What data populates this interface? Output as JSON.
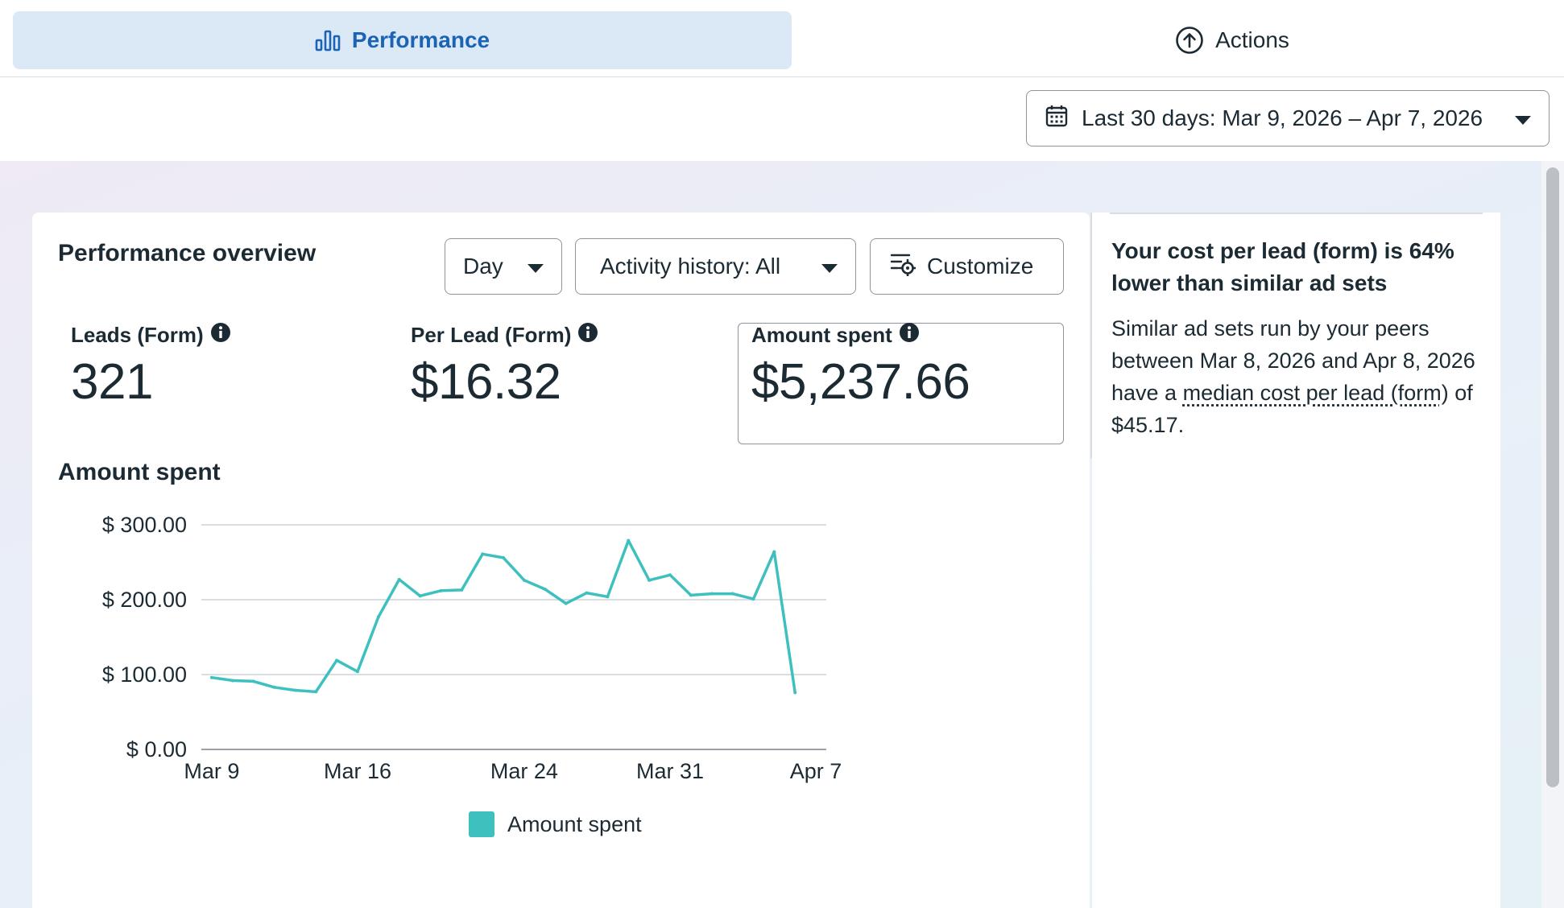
{
  "tabs": {
    "performance": {
      "label": "Performance",
      "icon": "bar-chart-icon"
    },
    "actions": {
      "label": "Actions",
      "icon": "arrow-up-circle-icon"
    }
  },
  "date_range": {
    "label": "Last 30 days: Mar 9, 2026 – Apr 7, 2026",
    "icon": "calendar-icon"
  },
  "overview": {
    "title": "Performance overview",
    "controls": {
      "granularity": "Day",
      "activity": "Activity history: All",
      "customize": "Customize"
    },
    "metrics": [
      {
        "label": "Leads (Form)",
        "value": "321"
      },
      {
        "label": "Per Lead (Form)",
        "value": "$16.32"
      },
      {
        "label": "Amount spent",
        "value": "$5,237.66"
      }
    ],
    "chart_title": "Amount spent"
  },
  "chart_data": {
    "type": "line",
    "series": [
      {
        "name": "Amount spent",
        "color": "#3ec0bf",
        "x": [
          "Mar 9",
          "Mar 10",
          "Mar 11",
          "Mar 12",
          "Mar 13",
          "Mar 14",
          "Mar 15",
          "Mar 16",
          "Mar 17",
          "Mar 18",
          "Mar 19",
          "Mar 20",
          "Mar 21",
          "Mar 22",
          "Mar 23",
          "Mar 24",
          "Mar 25",
          "Mar 26",
          "Mar 27",
          "Mar 28",
          "Mar 29",
          "Mar 30",
          "Mar 31",
          "Apr 1",
          "Apr 2",
          "Apr 3",
          "Apr 4",
          "Apr 5",
          "Apr 6",
          "Apr 7"
        ],
        "values": [
          96,
          92,
          91,
          83,
          79,
          77,
          119,
          104,
          177,
          227,
          205,
          212,
          213,
          261,
          256,
          226,
          214,
          195,
          209,
          204,
          279,
          226,
          233,
          206,
          208,
          208,
          201,
          264,
          76,
          null
        ]
      }
    ],
    "x_tick_labels": [
      "Mar 9",
      "Mar 16",
      "Mar 24",
      "Mar 31",
      "Apr 7"
    ],
    "y_tick_labels": [
      "$ 0.00",
      "$ 100.00",
      "$ 200.00",
      "$ 300.00"
    ],
    "y_ticks": [
      0,
      100,
      200,
      300
    ],
    "ylim": [
      0,
      300
    ],
    "grid": true,
    "legend": "bottom-center"
  },
  "insight": {
    "heading": "Your cost per lead (form) is 64% lower than similar ad sets",
    "body_before": "Similar ad sets run by your peers between Mar 8, 2026 and Apr 8, 2026 have a ",
    "link": "median cost per lead (form)",
    "body_after": " of $45.17."
  }
}
